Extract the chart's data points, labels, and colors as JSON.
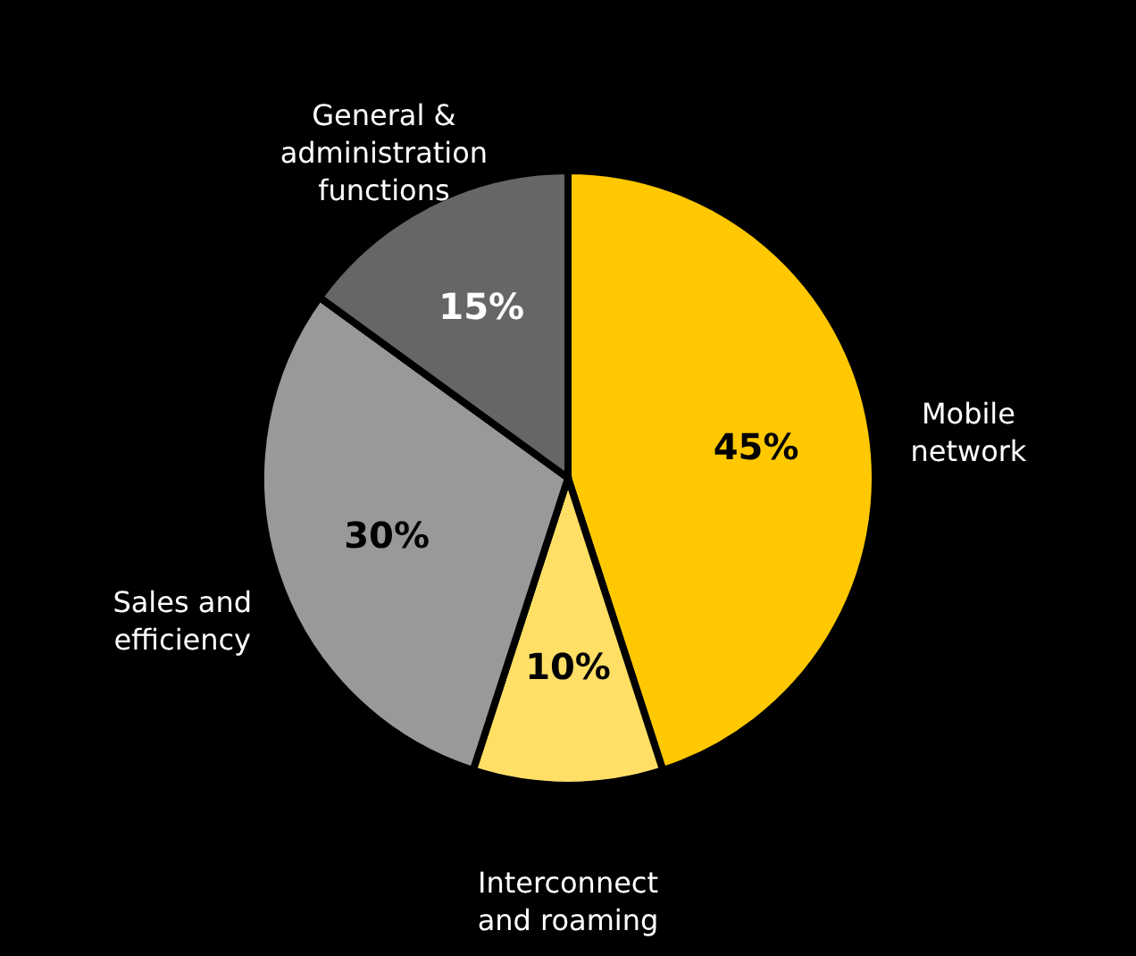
{
  "chart_data": {
    "type": "pie",
    "categories": [
      "Mobile network",
      "Interconnect and roaming",
      "Sales and efficiency",
      "General & administration functions"
    ],
    "values": [
      45,
      10,
      30,
      15
    ],
    "colors": [
      "#ffc800",
      "#ffdf66",
      "#999999",
      "#666666"
    ],
    "value_labels": [
      "45%",
      "10%",
      "30%",
      "15%"
    ],
    "legend": false
  }
}
